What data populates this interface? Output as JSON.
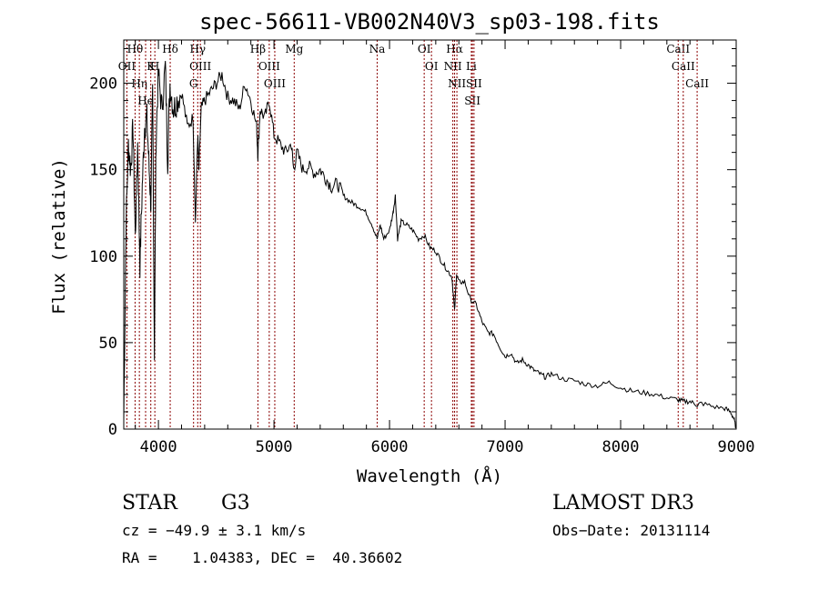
{
  "chart_data": {
    "type": "line",
    "title": "spec-56611-VB002N40V3_sp03-198.fits",
    "xlabel": "Wavelength (Å)",
    "ylabel": "Flux (relative)",
    "xlim": [
      3700,
      9000
    ],
    "ylim": [
      0,
      225
    ],
    "x_ticks": [
      4000,
      5000,
      6000,
      7000,
      8000,
      9000
    ],
    "y_ticks": [
      0,
      50,
      100,
      150,
      200
    ],
    "x_tick_labels": [
      "4000",
      "5000",
      "6000",
      "7000",
      "8000",
      "9000"
    ],
    "y_tick_labels": [
      "0",
      "50",
      "100",
      "150",
      "200"
    ],
    "line_color": "#000000",
    "marker_color": "#8b0000",
    "series": [
      {
        "name": "flux",
        "x": [
          3700,
          3720,
          3740,
          3760,
          3780,
          3800,
          3820,
          3840,
          3860,
          3880,
          3900,
          3920,
          3935,
          3950,
          3965,
          3980,
          4000,
          4030,
          4060,
          4080,
          4100,
          4130,
          4160,
          4200,
          4250,
          4300,
          4320,
          4340,
          4350,
          4370,
          4400,
          4450,
          4500,
          4550,
          4600,
          4650,
          4700,
          4750,
          4800,
          4850,
          4861,
          4880,
          4920,
          4960,
          5000,
          5050,
          5100,
          5150,
          5170,
          5200,
          5250,
          5300,
          5350,
          5400,
          5450,
          5500,
          5550,
          5600,
          5650,
          5700,
          5750,
          5800,
          5850,
          5893,
          5920,
          5950,
          6000,
          6030,
          6050,
          6070,
          6100,
          6150,
          6200,
          6250,
          6300,
          6350,
          6400,
          6450,
          6500,
          6540,
          6563,
          6580,
          6600,
          6650,
          6700,
          6750,
          6800,
          6850,
          6900,
          6950,
          7000,
          7050,
          7100,
          7150,
          7200,
          7250,
          7300,
          7350,
          7400,
          7500,
          7600,
          7700,
          7800,
          7900,
          8000,
          8100,
          8200,
          8300,
          8400,
          8500,
          8542,
          8600,
          8662,
          8700,
          8800,
          8900,
          8950,
          8980,
          9000
        ],
        "y": [
          5,
          120,
          165,
          150,
          175,
          110,
          165,
          95,
          140,
          175,
          180,
          150,
          130,
          195,
          45,
          170,
          205,
          185,
          210,
          155,
          200,
          185,
          190,
          195,
          175,
          180,
          120,
          170,
          150,
          185,
          190,
          195,
          200,
          205,
          192,
          190,
          185,
          200,
          190,
          175,
          158,
          185,
          180,
          190,
          170,
          165,
          160,
          165,
          150,
          160,
          150,
          152,
          148,
          150,
          145,
          140,
          142,
          135,
          132,
          130,
          128,
          125,
          118,
          110,
          118,
          110,
          115,
          125,
          135,
          110,
          120,
          118,
          115,
          110,
          112,
          105,
          103,
          97,
          92,
          88,
          68,
          90,
          85,
          85,
          75,
          72,
          62,
          56,
          55,
          48,
          42,
          44,
          38,
          40,
          37,
          34,
          32,
          30,
          32,
          29,
          28,
          26,
          25,
          27,
          24,
          22,
          21,
          20,
          18,
          17,
          16,
          16,
          14,
          15,
          13,
          12,
          10,
          6,
          0
        ]
      }
    ],
    "lines": [
      {
        "label": "Hθ",
        "x": 3798
      },
      {
        "label": "OII",
        "x": 3727
      },
      {
        "label": "Hη",
        "x": 3835
      },
      {
        "label": "K",
        "x": 3934
      },
      {
        "label": "He",
        "x": 3889
      },
      {
        "label": "H",
        "x": 3969
      },
      {
        "label": "Hδ",
        "x": 4102
      },
      {
        "label": "Hγ",
        "x": 4340
      },
      {
        "label": "OIII",
        "x": 4363
      },
      {
        "label": "G",
        "x": 4304
      },
      {
        "label": "Hβ",
        "x": 4861
      },
      {
        "label": "OIII",
        "x": 4959
      },
      {
        "label": "OIII",
        "x": 5007
      },
      {
        "label": "Mg",
        "x": 5175
      },
      {
        "label": "Na",
        "x": 5893
      },
      {
        "label": "OI",
        "x": 6300
      },
      {
        "label": "OI",
        "x": 6363
      },
      {
        "label": "Hα",
        "x": 6563
      },
      {
        "label": "NII",
        "x": 6548
      },
      {
        "label": "NII",
        "x": 6583
      },
      {
        "label": "SII",
        "x": 6717
      },
      {
        "label": "Li",
        "x": 6708
      },
      {
        "label": "SII",
        "x": 6731
      },
      {
        "label": "CaII",
        "x": 8498
      },
      {
        "label": "CaII",
        "x": 8542
      },
      {
        "label": "CaII",
        "x": 8662
      }
    ]
  },
  "info": {
    "class": "STAR",
    "subclass": "G3",
    "survey": "LAMOST DR3",
    "cz": "cz = −49.9 ± 3.1 km/s",
    "obs_date": "Obs−Date: 20131114",
    "radec": "RA =    1.04383, DEC =  40.36602"
  }
}
